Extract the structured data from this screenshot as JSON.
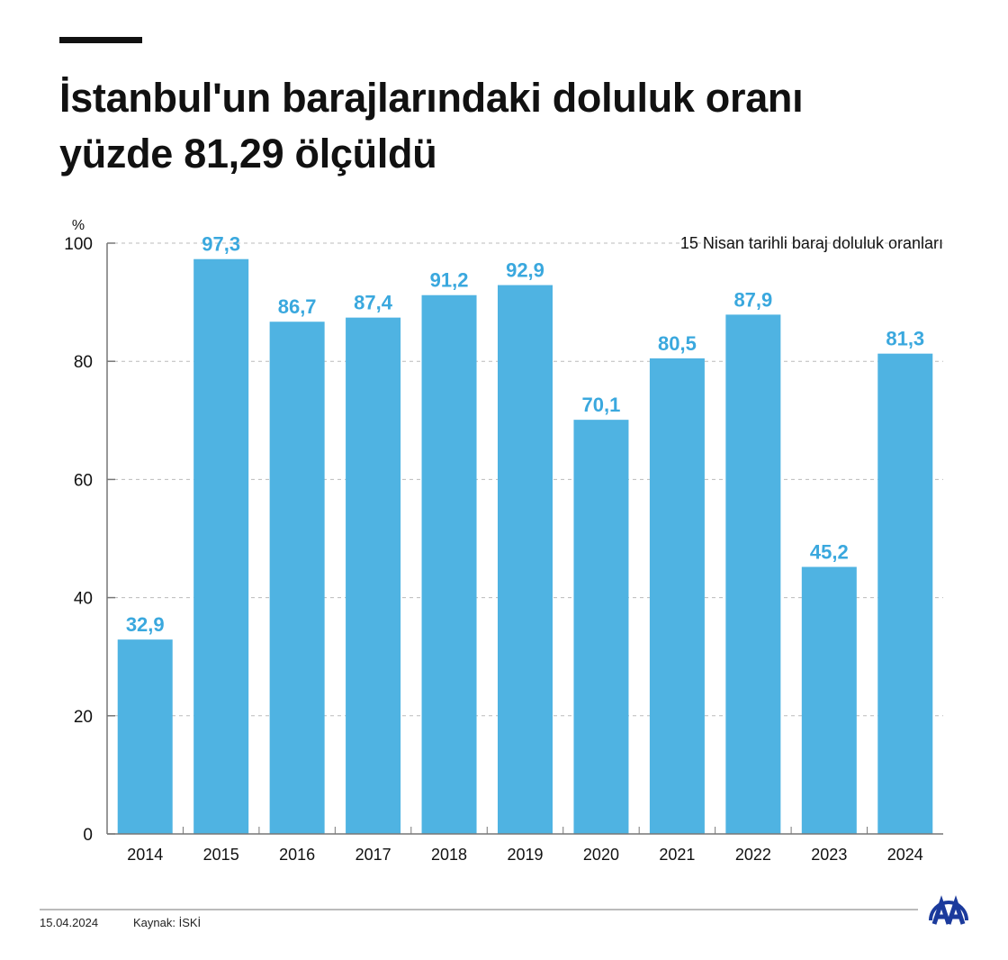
{
  "title_lines": [
    "İstanbul'un barajlarındaki doluluk oranı",
    "yüzde 81,29 ölçüldü"
  ],
  "footer": {
    "date": "15.04.2024",
    "source": "Kaynak: İSKİ",
    "logo_text": "AA"
  },
  "colors": {
    "bar": "#4fb3e2",
    "label": "#3aa8de",
    "grid": "#bbbbbb",
    "logo": "#1b3a9c"
  },
  "chart_data": {
    "type": "bar",
    "subtitle": "15 Nisan tarihli baraj doluluk oranları",
    "ylabel": "%",
    "categories": [
      "2014",
      "2015",
      "2016",
      "2017",
      "2018",
      "2019",
      "2020",
      "2021",
      "2022",
      "2023",
      "2024"
    ],
    "values": [
      32.9,
      97.3,
      86.7,
      87.4,
      91.2,
      92.9,
      70.1,
      80.5,
      87.9,
      45.2,
      81.3
    ],
    "value_labels": [
      "32,9",
      "97,3",
      "86,7",
      "87,4",
      "91,2",
      "92,9",
      "70,1",
      "80,5",
      "87,9",
      "45,2",
      "81,3"
    ],
    "ylim": [
      0,
      100
    ],
    "yticks": [
      "0",
      "20",
      "40",
      "60",
      "80",
      "100"
    ],
    "grid": true
  }
}
